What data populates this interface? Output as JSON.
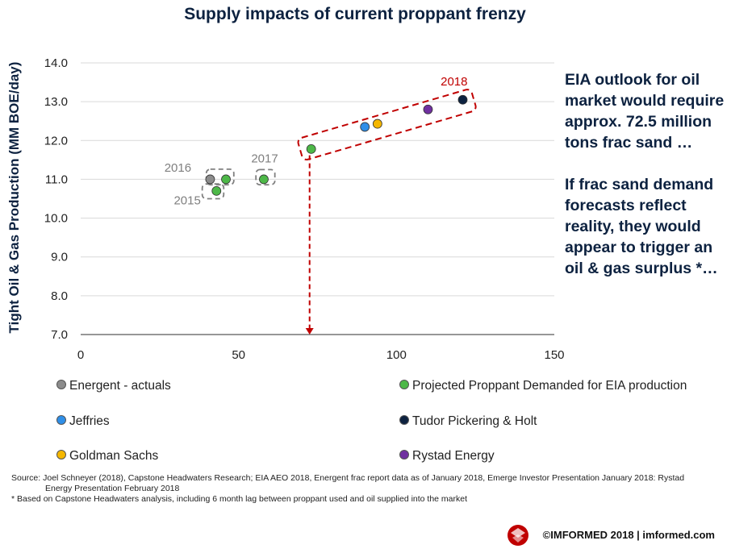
{
  "title": "Supply impacts of current proppant frenzy",
  "chart_data": {
    "type": "scatter",
    "ylabel": "Tight Oil & Gas Production (MM BOE/day)",
    "xlabel": "",
    "xlim": [
      0,
      150
    ],
    "ylim": [
      7.0,
      14.0
    ],
    "xticks": [
      "0",
      "50",
      "100",
      "150"
    ],
    "yticks": [
      "7.0",
      "8.0",
      "9.0",
      "10.0",
      "11.0",
      "12.0",
      "13.0",
      "14.0"
    ],
    "series": [
      {
        "name": "Energent - actuals",
        "color": "#8c8c8c",
        "points": [
          [
            41,
            11.0
          ]
        ]
      },
      {
        "name": "Projected Proppant Demanded for EIA production",
        "color": "#4db848",
        "points": [
          [
            43,
            10.7
          ],
          [
            46,
            11.0
          ],
          [
            58,
            11.0
          ],
          [
            73,
            11.78
          ]
        ]
      },
      {
        "name": "Jeffries",
        "color": "#2f8fe8",
        "points": [
          [
            90,
            12.35
          ]
        ]
      },
      {
        "name": "Tudor Pickering & Holt",
        "color": "#0d2240",
        "points": [
          [
            121,
            13.05
          ]
        ]
      },
      {
        "name": "Goldman Sachs",
        "color": "#f5b700",
        "points": [
          [
            94,
            12.43
          ]
        ]
      },
      {
        "name": "Rystad Energy",
        "color": "#7030a0",
        "points": [
          [
            110,
            12.8
          ]
        ]
      }
    ],
    "annotations": {
      "year_2015": "2015",
      "year_2016": "2016",
      "year_2017": "2017",
      "year_2018": "2018"
    },
    "grid": "horizontal"
  },
  "side_text": {
    "p1": "EIA outlook for oil market would require approx. 72.5 million tons frac sand …",
    "p2": "If frac sand demand forecasts reflect reality, they would appear to trigger an oil & gas surplus *…"
  },
  "legend": [
    {
      "label": "Energent - actuals",
      "color": "#8c8c8c"
    },
    {
      "label": "Projected Proppant Demanded for EIA production",
      "color": "#4db848"
    },
    {
      "label": "Jeffries",
      "color": "#2f8fe8"
    },
    {
      "label": "Tudor Pickering & Holt",
      "color": "#0d2240"
    },
    {
      "label": "Goldman Sachs",
      "color": "#f5b700"
    },
    {
      "label": "Rystad Energy",
      "color": "#7030a0"
    }
  ],
  "source": {
    "line1": "Source:  Joel Schneyer (2018), Capstone Headwaters Research; EIA AEO 2018, Energent  frac report data as of January 2018, Emerge Investor Presentation January 2018: Rystad",
    "line2": "Energy Presentation February 2018",
    "line3": "*  Based on Capstone Headwaters analysis, including 6 month lag between proppant used and oil supplied into the market"
  },
  "footer": "©IMFORMED 2018  | imformed.com"
}
